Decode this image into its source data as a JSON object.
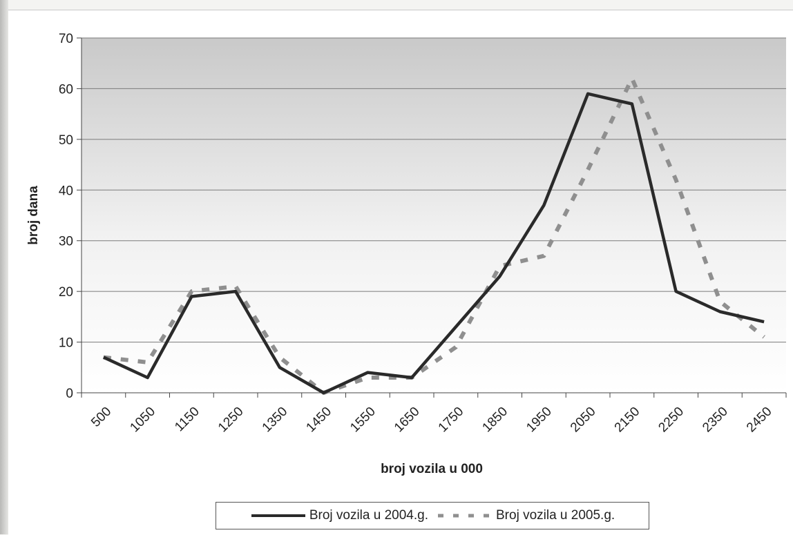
{
  "chart_data": {
    "type": "line",
    "title": "",
    "xlabel": "broj vozila u 000",
    "ylabel": "broj dana",
    "categories": [
      "500",
      "1050",
      "1150",
      "1250",
      "1350",
      "1450",
      "1550",
      "1650",
      "1750",
      "1850",
      "1950",
      "2050",
      "2150",
      "2250",
      "2350",
      "2450"
    ],
    "ylim": [
      0,
      70
    ],
    "yticks": [
      0,
      10,
      20,
      30,
      40,
      50,
      60,
      70
    ],
    "grid": true,
    "legend_position": "bottom",
    "series": [
      {
        "name": "Broj vozila u 2004.g.",
        "style": "solid",
        "color": "#2a2a2a",
        "values": [
          7,
          3,
          19,
          20,
          5,
          0,
          4,
          3,
          13,
          23,
          37,
          59,
          57,
          20,
          16,
          14
        ]
      },
      {
        "name": "Broj vozila u 2005.g.",
        "style": "dashed",
        "color": "#8f8f8f",
        "values": [
          7,
          6,
          20,
          21,
          7,
          0,
          3,
          3,
          9,
          25,
          27,
          44,
          62,
          42,
          18,
          11
        ]
      }
    ]
  }
}
